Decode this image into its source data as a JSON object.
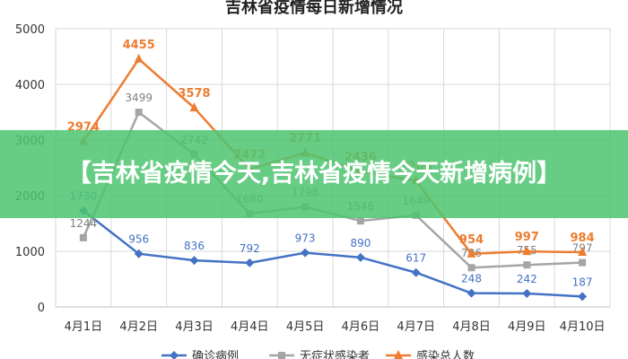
{
  "banner": {
    "text": "【吉林省疫情今天,吉林省疫情今天新增病例】"
  },
  "chart_data": {
    "type": "line",
    "title": "吉林省疫情每日新增情况",
    "categories": [
      "4月1日",
      "4月2日",
      "4月3日",
      "4月4日",
      "4月5日",
      "4月6日",
      "4月7日",
      "4月8日",
      "4月9日",
      "4月10日"
    ],
    "ylim": [
      0,
      5000
    ],
    "yticks": [
      0,
      1000,
      2000,
      3000,
      4000,
      5000
    ],
    "grid": true,
    "legend_position": "bottom",
    "series": [
      {
        "name": "确诊病例",
        "color": "#4472C4",
        "marker": "diamond",
        "values": [
          1730,
          956,
          836,
          792,
          973,
          890,
          617,
          248,
          242,
          187
        ]
      },
      {
        "name": "无症状感染者",
        "color": "#A5A5A5",
        "marker": "square",
        "values": [
          1244,
          3499,
          2742,
          1680,
          1798,
          1546,
          1649,
          706,
          755,
          797
        ]
      },
      {
        "name": "感染总人数",
        "color": "#ED7D31",
        "marker": "triangle",
        "values": [
          2974,
          4455,
          3578,
          2472,
          2771,
          2436,
          2266,
          954,
          997,
          984
        ]
      }
    ]
  }
}
